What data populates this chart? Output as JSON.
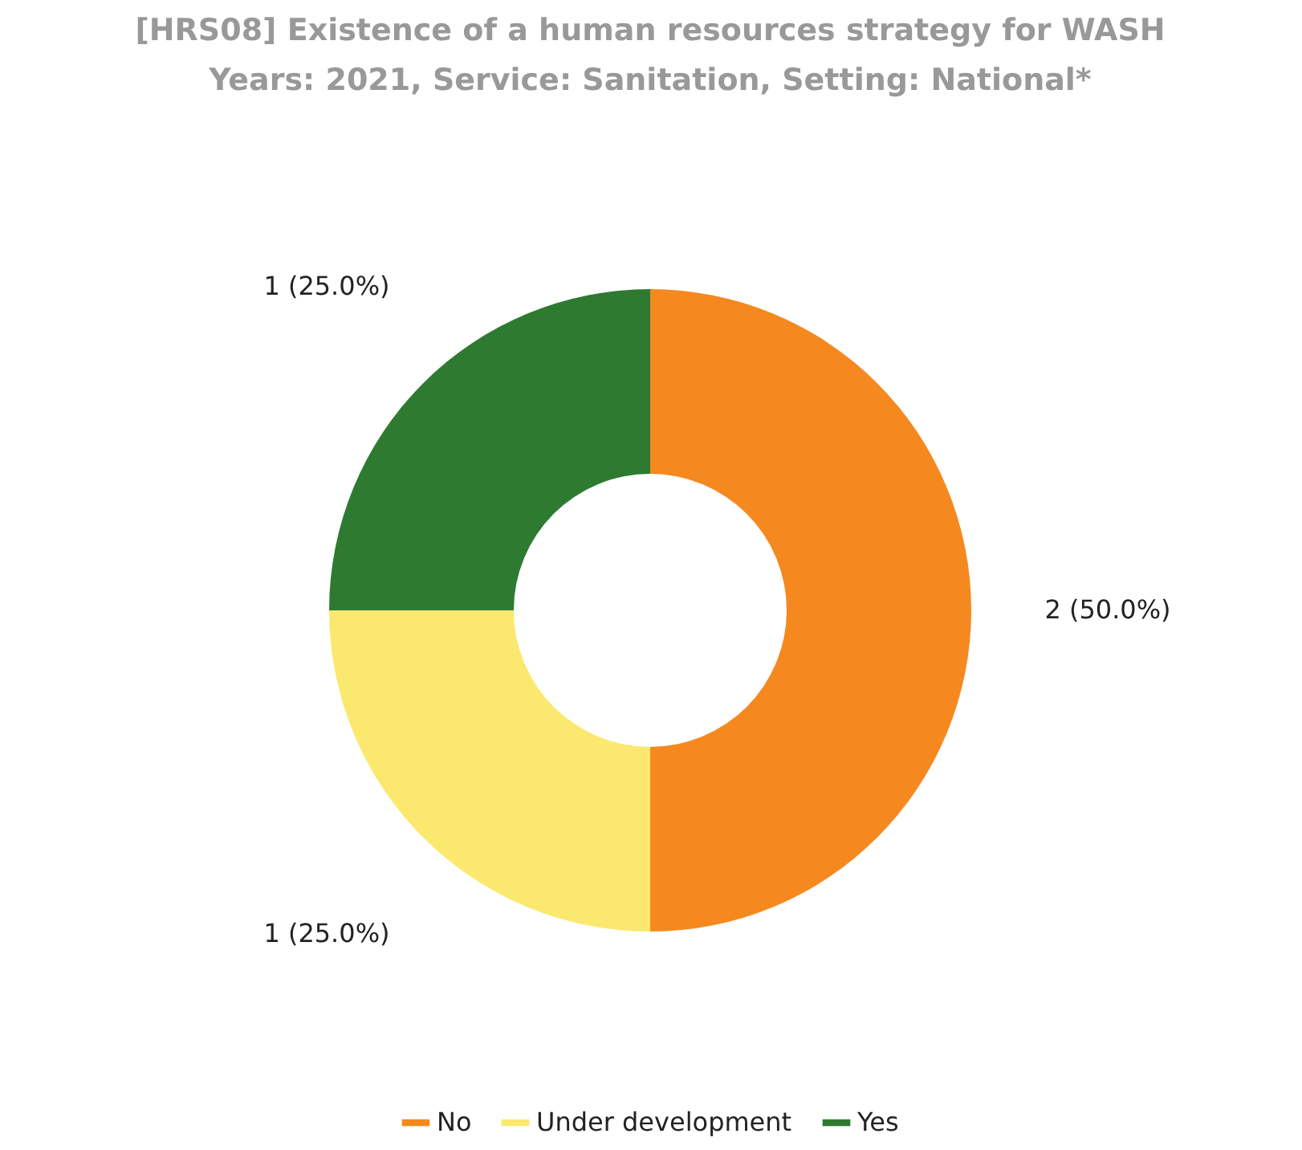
{
  "chart_data": {
    "type": "donut",
    "title": "[HRS08] Existence of a human resources strategy for WASH",
    "subtitle": "Years: 2021, Service: Sanitation, Setting: National*",
    "categories": [
      "No",
      "Under development",
      "Yes"
    ],
    "values": [
      2,
      1,
      1
    ],
    "colors": [
      "#f5891f",
      "#fbe96f",
      "#2e7a31"
    ],
    "value_labels": [
      "2 (50.0%)",
      "1 (25.0%)",
      "1 (25.0%)"
    ],
    "legend": "bottom"
  }
}
